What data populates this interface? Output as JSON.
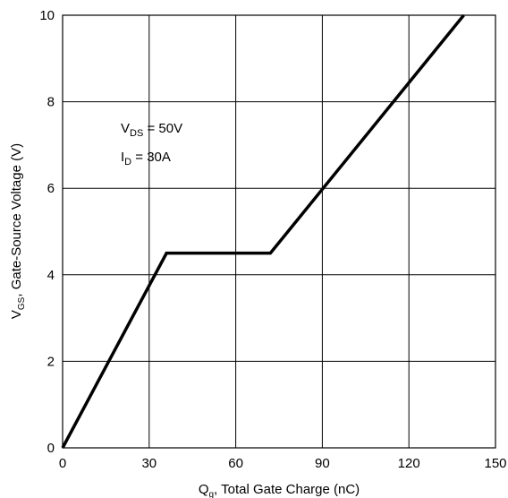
{
  "chart_data": {
    "type": "line",
    "xlabel": {
      "main": "Q",
      "sub": "g",
      "rest": ", Total Gate Charge (nC)"
    },
    "ylabel": {
      "main": "V",
      "sub": "GS",
      "rest": ", Gate-Source Voltage (V)"
    },
    "xlim": [
      0,
      150
    ],
    "ylim": [
      0,
      10
    ],
    "xticks": [
      0,
      30,
      60,
      90,
      120,
      150
    ],
    "yticks": [
      0,
      2,
      4,
      6,
      8,
      10
    ],
    "xtick_labels": [
      "0",
      "30",
      "60",
      "90",
      "120",
      "150"
    ],
    "ytick_labels": [
      "0",
      "2",
      "4",
      "6",
      "8",
      "10"
    ],
    "grid": true,
    "series": [
      {
        "color": "#000000",
        "x": [
          0,
          36,
          72,
          139
        ],
        "y": [
          0,
          4.5,
          4.5,
          10
        ]
      }
    ],
    "annotations": [
      {
        "main": "V",
        "sub": "DS",
        "rest": " = 50V"
      },
      {
        "main": "I",
        "sub": "D",
        "rest": " = 30A"
      }
    ]
  }
}
